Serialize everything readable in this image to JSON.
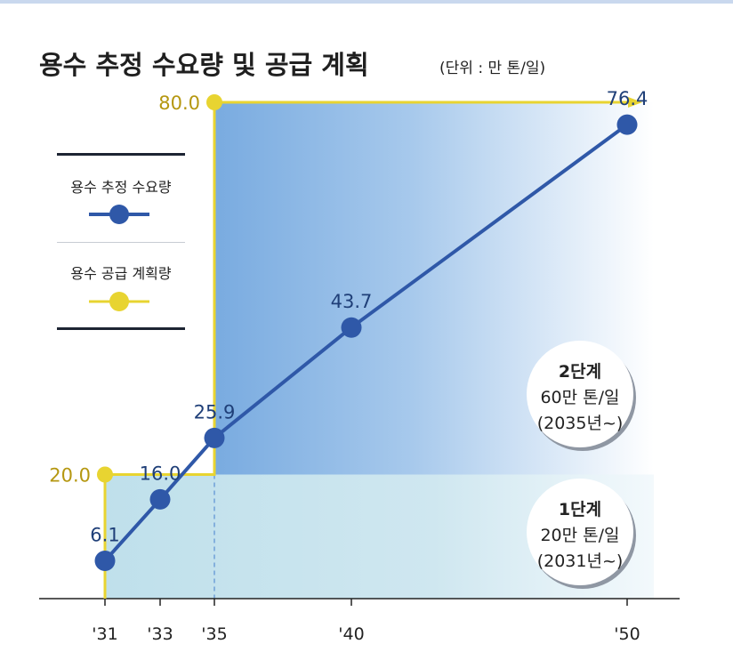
{
  "title": "용수 추정 수요량 및 공급 계획",
  "unit": "(단위 : 만 톤/일)",
  "legend": {
    "demand_label": "용수 추정 수요량",
    "supply_label": "용수 공급 계획량"
  },
  "colors": {
    "demand": "#2f58a8",
    "supply": "#e8d431",
    "demand_label_text": "#1f3f78",
    "supply_label_text": "#b59710",
    "stage2_fill": "#6fa3dc",
    "stage1_fill": "#b9deea"
  },
  "stages": [
    {
      "name": "1단계",
      "amount": "20만 톤/일",
      "since": "(2031년~)"
    },
    {
      "name": "2단계",
      "amount": "60만 톤/일",
      "since": "(2035년~)"
    }
  ],
  "chart_data": {
    "type": "line",
    "categories": [
      "'31",
      "'33",
      "'35",
      "'40",
      "'50"
    ],
    "x": [
      2031,
      2033,
      2035,
      2040,
      2050
    ],
    "ylim": [
      0,
      85
    ],
    "grid": false,
    "legend_position": "left",
    "series": [
      {
        "name": "용수 추정 수요량",
        "x": [
          2031,
          2033,
          2035,
          2040,
          2050
        ],
        "values": [
          6.1,
          16.0,
          25.9,
          43.7,
          76.4
        ],
        "labels": [
          "6.1",
          "16.0",
          "25.9",
          "43.7",
          "76.4"
        ]
      },
      {
        "name": "용수 공급 계획량",
        "steps": [
          {
            "from": 2031,
            "value": 20.0,
            "label": "20.0"
          },
          {
            "from": 2035,
            "value": 80.0,
            "label": "80.0"
          }
        ]
      }
    ]
  }
}
